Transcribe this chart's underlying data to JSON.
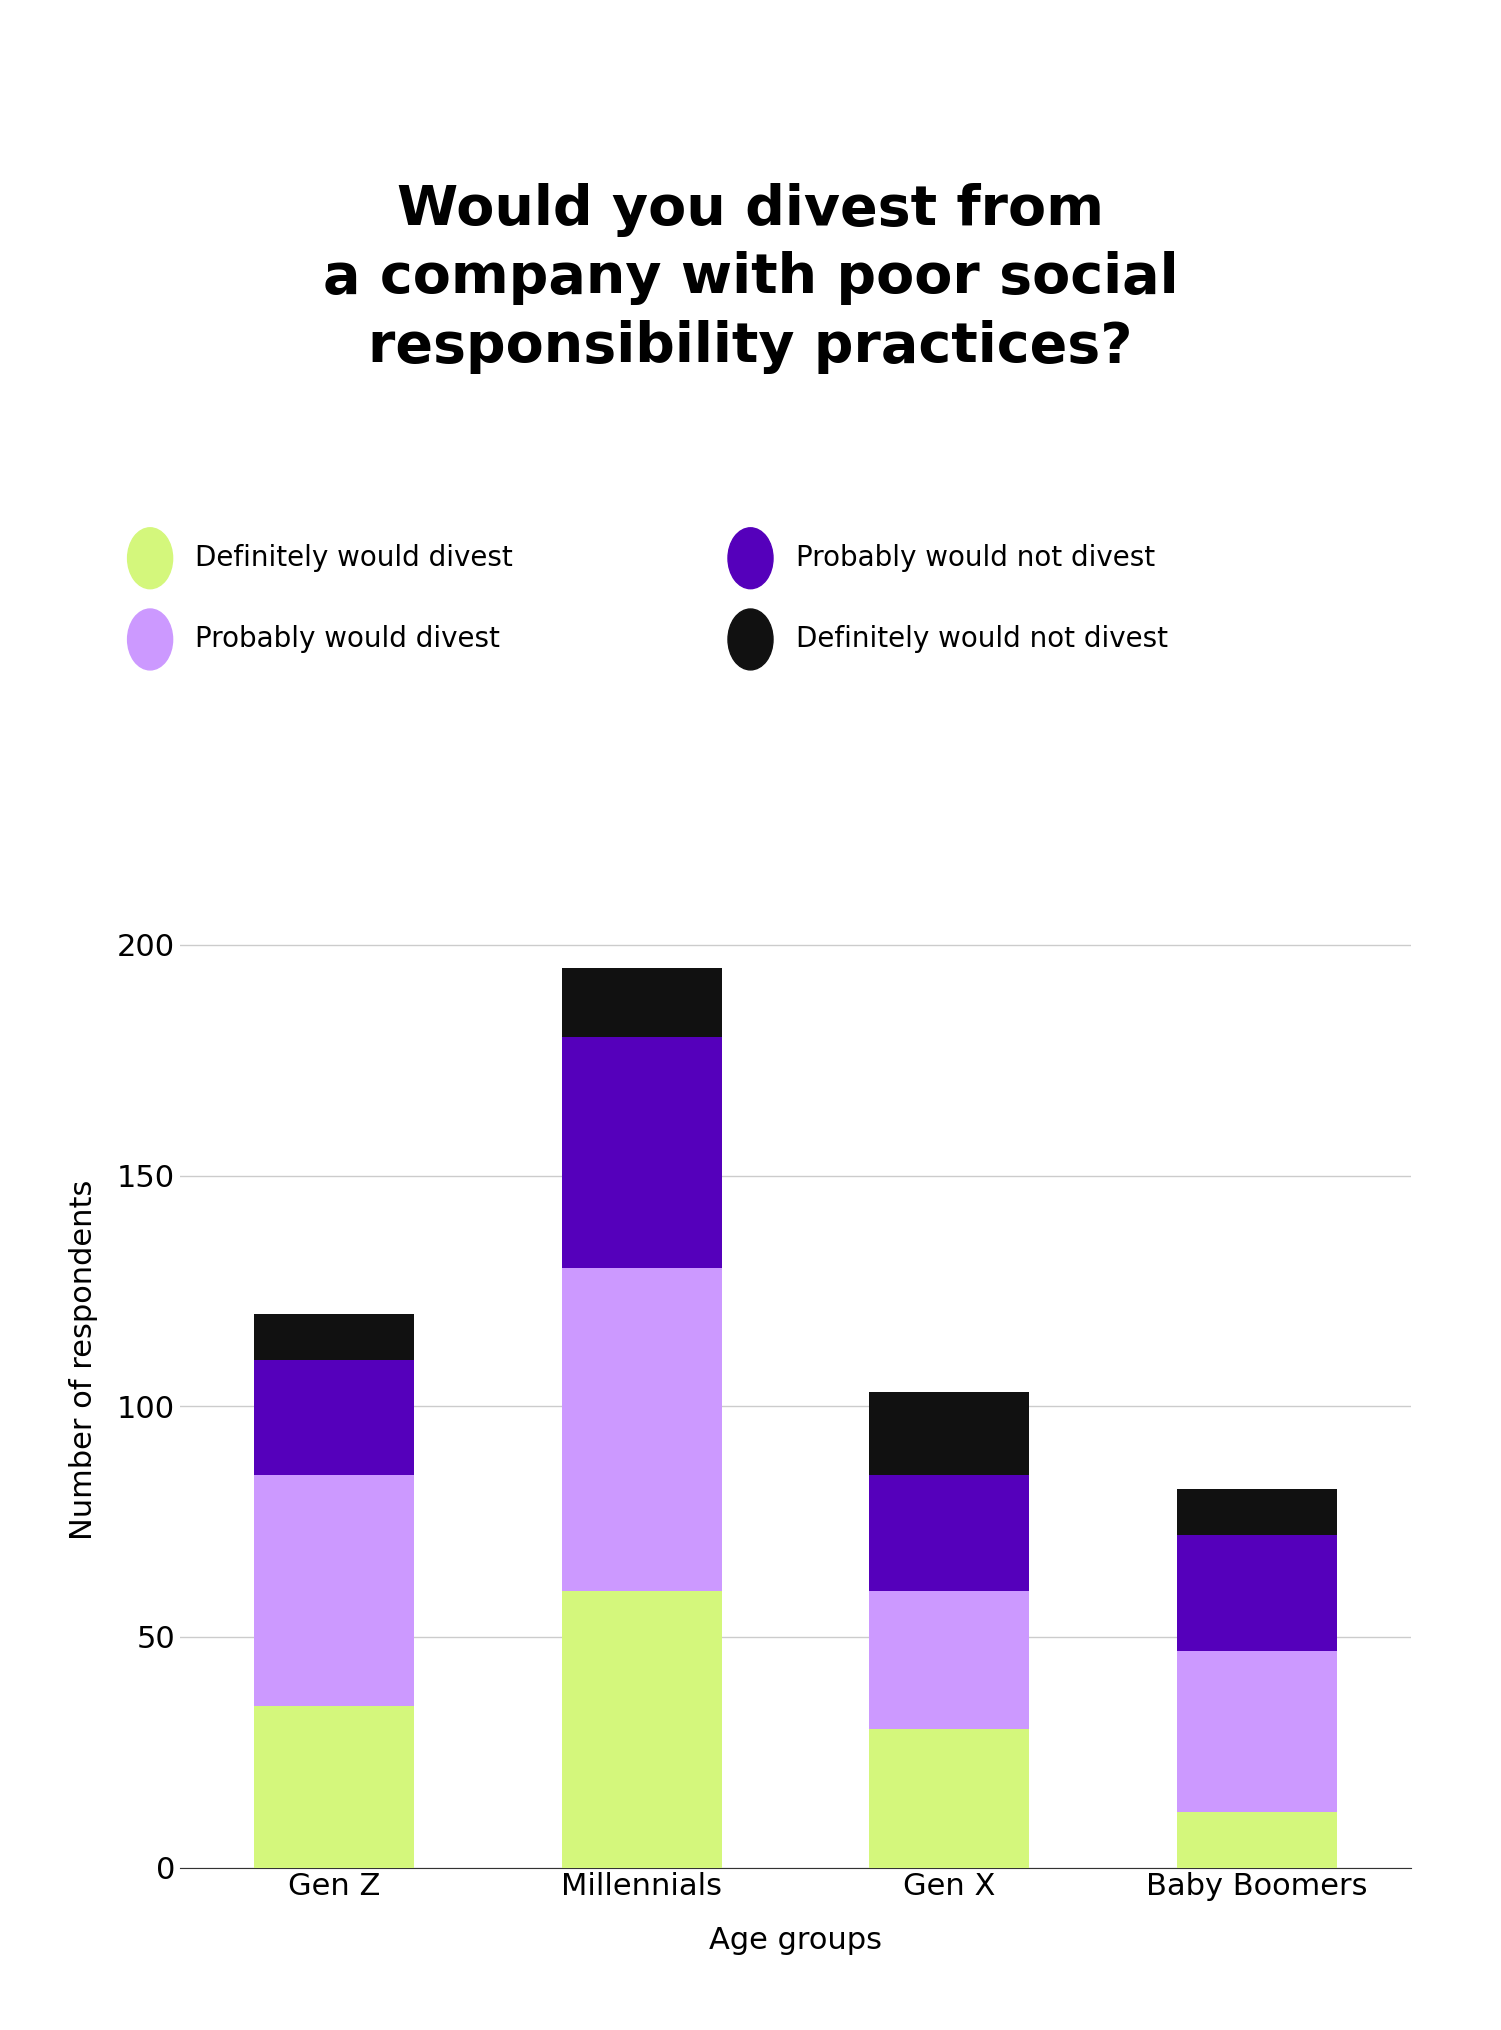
{
  "title": "Would you divest from\na company with poor social\nresponsibility practices?",
  "xlabel": "Age groups",
  "ylabel": "Number of respondents",
  "categories": [
    "Gen Z",
    "Millennials",
    "Gen X",
    "Baby Boomers"
  ],
  "series": {
    "Definitely would divest": [
      35,
      60,
      30,
      12
    ],
    "Probably would divest": [
      50,
      70,
      30,
      35
    ],
    "Probably would not divest": [
      25,
      50,
      25,
      25
    ],
    "Definitely would not divest": [
      10,
      15,
      18,
      10
    ]
  },
  "colors": {
    "Definitely would divest": "#d4f77c",
    "Probably would divest": "#cc99ff",
    "Probably would not divest": "#5500bb",
    "Definitely would not divest": "#111111"
  },
  "legend_labels_col1": [
    "Definitely would divest",
    "Probably would divest"
  ],
  "legend_labels_col2": [
    "Probably would not divest",
    "Definitely would not divest"
  ],
  "ylim": [
    0,
    220
  ],
  "yticks": [
    0,
    50,
    100,
    150,
    200
  ],
  "background_color": "#ffffff",
  "grid_color": "#cccccc",
  "title_fontsize": 40,
  "label_fontsize": 22,
  "tick_fontsize": 22,
  "legend_fontsize": 20,
  "bar_width": 0.52
}
